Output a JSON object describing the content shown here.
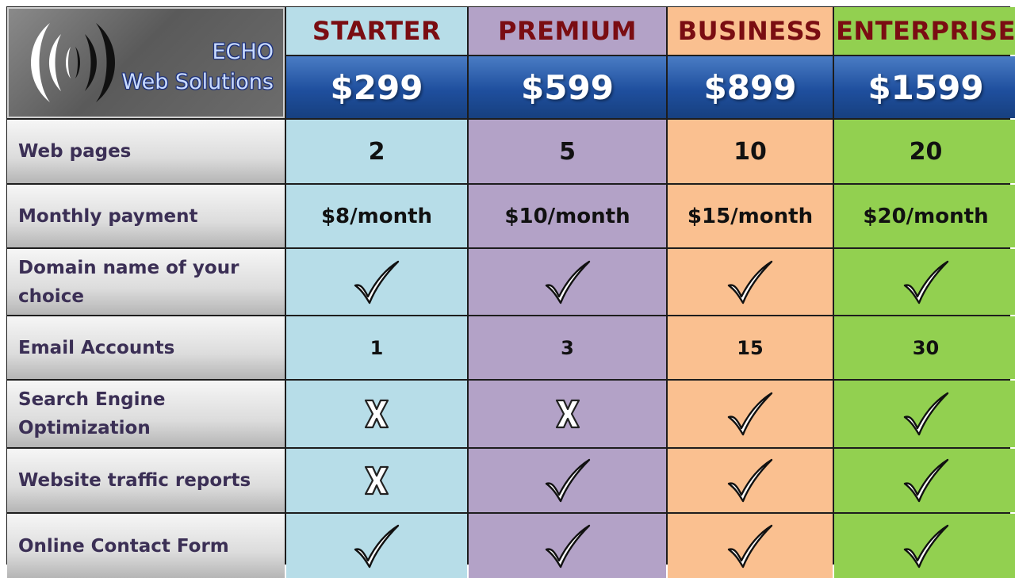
{
  "brand": {
    "line1": "ECHO",
    "line2": "Web Solutions",
    "logo_icon": "sound-wave-icon"
  },
  "plans": [
    {
      "name": "STARTER",
      "price": "$299",
      "color": "#b7dde8"
    },
    {
      "name": "PREMIUM",
      "price": "$599",
      "color": "#b3a2c7"
    },
    {
      "name": "BUSINESS",
      "price": "$899",
      "color": "#fac090"
    },
    {
      "name": "ENTERPRISE",
      "price": "$1599",
      "color": "#92d050"
    }
  ],
  "header_colors": {
    "plan_name_text": "#7a0d12",
    "price_band": "#1f4f9e"
  },
  "rows": [
    {
      "label": "Web pages",
      "values": [
        "2",
        "5",
        "10",
        "20"
      ]
    },
    {
      "label": "Monthly payment",
      "values": [
        "$8/month",
        "$10/month",
        "$15/month",
        "$20/month"
      ]
    },
    {
      "label": "Domain name of your choice",
      "values": [
        "check",
        "check",
        "check",
        "check"
      ]
    },
    {
      "label": "Email Accounts",
      "values": [
        "1",
        "3",
        "15",
        "30"
      ]
    },
    {
      "label": "Search Engine Optimization",
      "values": [
        "cross",
        "cross",
        "check",
        "check"
      ]
    },
    {
      "label": "Website traffic reports",
      "values": [
        "cross",
        "check",
        "check",
        "check"
      ]
    },
    {
      "label": "Online Contact Form",
      "values": [
        "check",
        "check",
        "check",
        "check"
      ]
    }
  ],
  "icons": {
    "check": "checkmark-icon",
    "cross": "x-mark-icon"
  }
}
